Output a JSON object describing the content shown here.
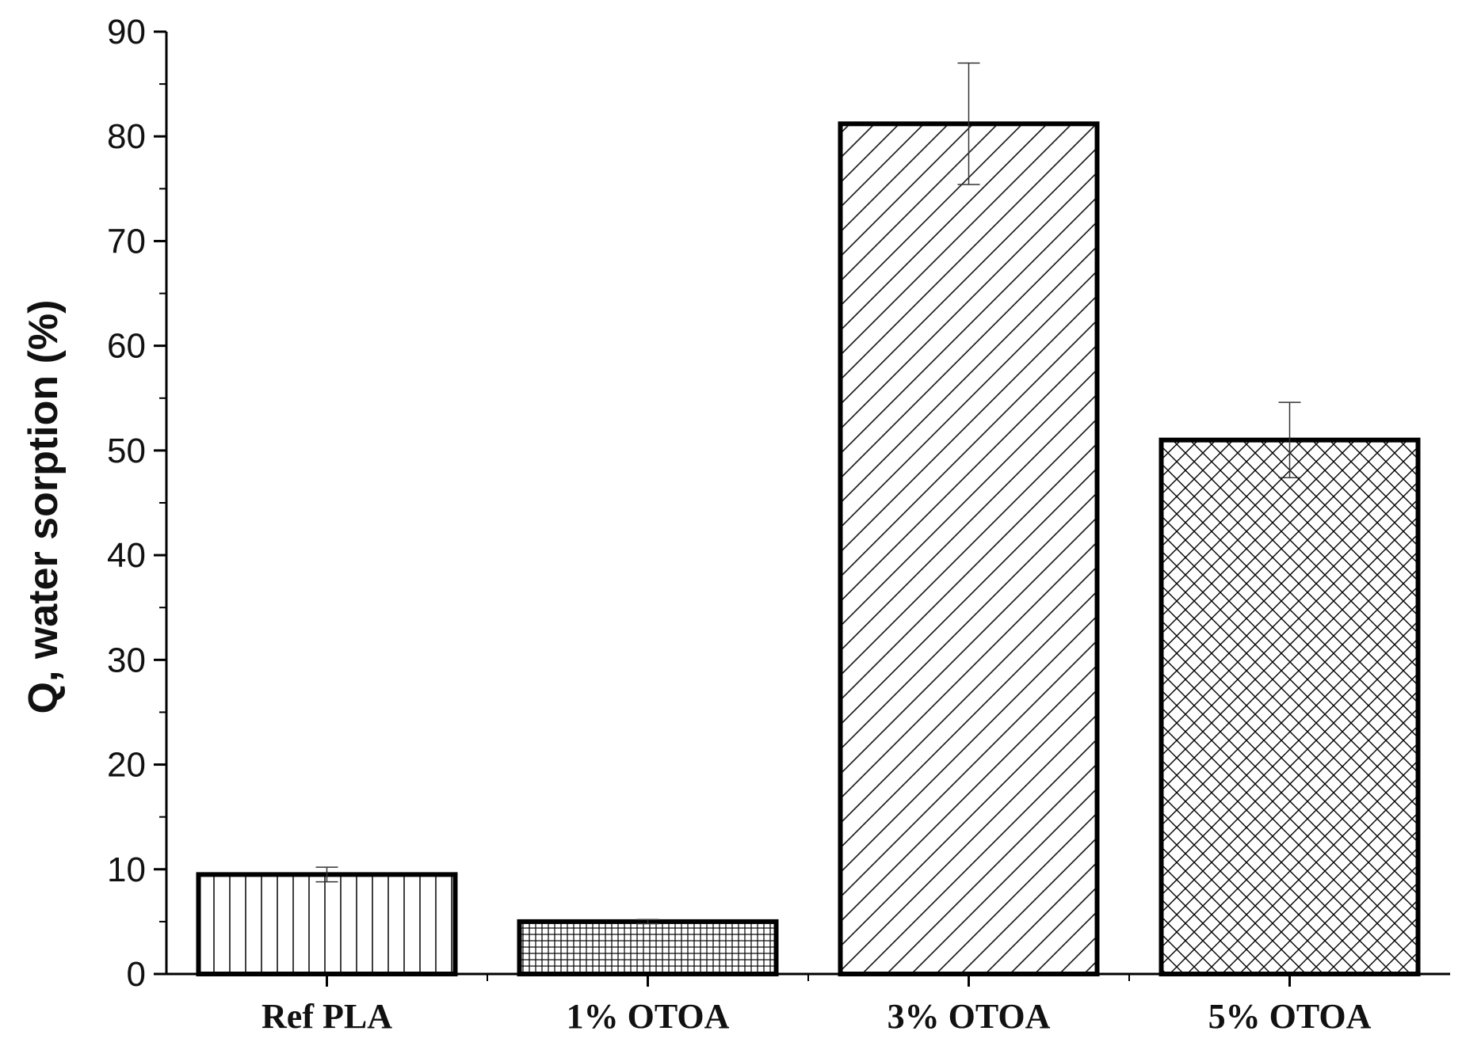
{
  "chart_data": {
    "type": "bar",
    "title": "",
    "xlabel": "",
    "ylabel": "Q, water sorption (%)",
    "ylim": [
      0,
      90
    ],
    "yticks": [
      0,
      10,
      20,
      30,
      40,
      50,
      60,
      70,
      80,
      90
    ],
    "categories": [
      "Ref PLA",
      "1% OTOA",
      "3% OTOA",
      "5% OTOA"
    ],
    "values": [
      9.5,
      5.0,
      81.2,
      51.0
    ],
    "errors": [
      0.7,
      0.2,
      5.8,
      3.6
    ],
    "fill_patterns": [
      "vertical-lines",
      "fine-grid",
      "diagonal-lines",
      "crosshatch"
    ],
    "grid": false,
    "legend": "none",
    "colors": {
      "bar_outline": "#000000",
      "pattern": "#000000",
      "background": "#ffffff"
    }
  }
}
